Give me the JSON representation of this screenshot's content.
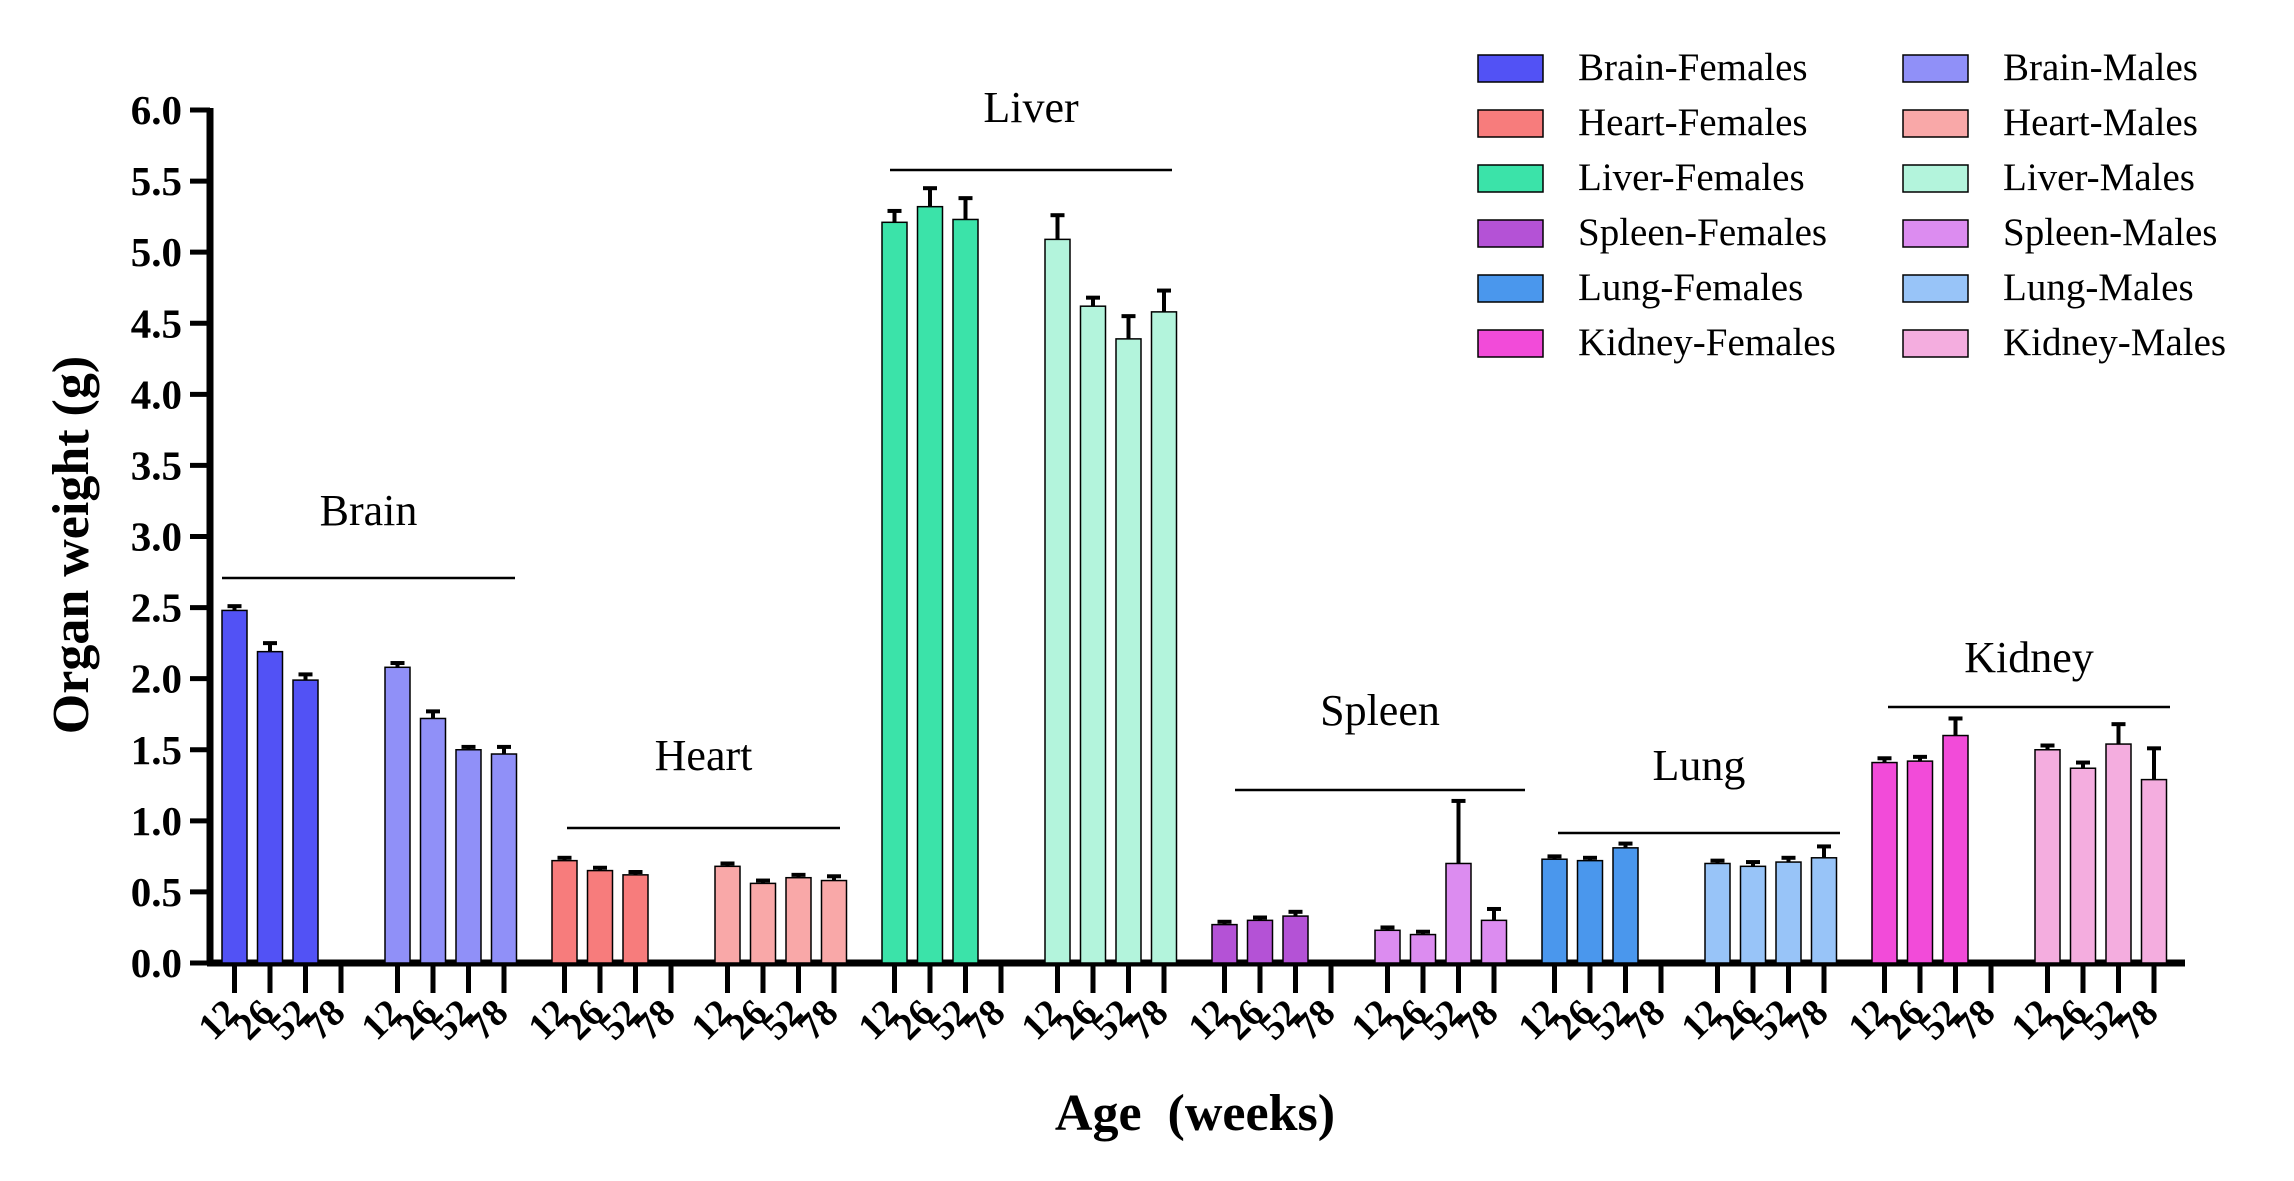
{
  "chart_data": {
    "type": "bar",
    "title": "",
    "xlabel": "Age  (weeks)",
    "ylabel": "Organ weight (g)",
    "ylim": [
      0,
      6
    ],
    "yticks": [
      "0.0",
      "0.5",
      "1.0",
      "1.5",
      "2.0",
      "2.5",
      "3.0",
      "3.5",
      "4.0",
      "4.5",
      "5.0",
      "5.5",
      "6.0"
    ],
    "age_labels": [
      "12",
      "26",
      "52",
      "78"
    ],
    "legend": {
      "placement": "top-right",
      "entries": [
        {
          "name": "Brain-Females",
          "color": "#5252f5"
        },
        {
          "name": "Brain-Males",
          "color": "#9090f8"
        },
        {
          "name": "Heart-Females",
          "color": "#f77c7c"
        },
        {
          "name": "Heart-Males",
          "color": "#f9a8a8"
        },
        {
          "name": "Liver-Females",
          "color": "#3be3a9"
        },
        {
          "name": "Liver-Males",
          "color": "#b3f4dc"
        },
        {
          "name": "Spleen-Females",
          "color": "#b452d6"
        },
        {
          "name": "Spleen-Males",
          "color": "#dc8cf0"
        },
        {
          "name": "Lung-Females",
          "color": "#4a97ed"
        },
        {
          "name": "Lung-Males",
          "color": "#98c4f8"
        },
        {
          "name": "Kidney-Females",
          "color": "#f24bd9"
        },
        {
          "name": "Kidney-Males",
          "color": "#f4addf"
        }
      ]
    },
    "groups": [
      {
        "name": "Brain",
        "series": [
          {
            "name": "Brain-Females",
            "color": "#5252f5",
            "values": [
              2.48,
              2.19,
              1.99,
              null
            ],
            "errors": [
              0.03,
              0.06,
              0.04,
              null
            ]
          },
          {
            "name": "Brain-Males",
            "color": "#9090f8",
            "values": [
              2.08,
              1.72,
              1.5,
              1.47
            ],
            "errors": [
              0.03,
              0.05,
              0.02,
              0.05
            ]
          }
        ]
      },
      {
        "name": "Heart",
        "series": [
          {
            "name": "Heart-Females",
            "color": "#f77c7c",
            "values": [
              0.72,
              0.65,
              0.62,
              null
            ],
            "errors": [
              0.02,
              0.02,
              0.02,
              null
            ]
          },
          {
            "name": "Heart-Males",
            "color": "#f9a8a8",
            "values": [
              0.68,
              0.56,
              0.6,
              0.58
            ],
            "errors": [
              0.02,
              0.02,
              0.02,
              0.03
            ]
          }
        ]
      },
      {
        "name": "Liver",
        "series": [
          {
            "name": "Liver-Females",
            "color": "#3be3a9",
            "values": [
              5.21,
              5.32,
              5.23,
              null
            ],
            "errors": [
              0.08,
              0.13,
              0.15,
              null
            ]
          },
          {
            "name": "Liver-Males",
            "color": "#b3f4dc",
            "values": [
              5.09,
              4.62,
              4.39,
              4.58
            ],
            "errors": [
              0.17,
              0.06,
              0.16,
              0.15
            ]
          }
        ]
      },
      {
        "name": "Spleen",
        "series": [
          {
            "name": "Spleen-Females",
            "color": "#b452d6",
            "values": [
              0.27,
              0.3,
              0.33,
              null
            ],
            "errors": [
              0.02,
              0.02,
              0.03,
              null
            ]
          },
          {
            "name": "Spleen-Males",
            "color": "#dc8cf0",
            "values": [
              0.23,
              0.2,
              0.7,
              0.3
            ],
            "errors": [
              0.02,
              0.02,
              0.44,
              0.08
            ]
          }
        ]
      },
      {
        "name": "Lung",
        "series": [
          {
            "name": "Lung-Females",
            "color": "#4a97ed",
            "values": [
              0.73,
              0.72,
              0.81,
              null
            ],
            "errors": [
              0.02,
              0.02,
              0.03,
              null
            ]
          },
          {
            "name": "Lung-Males",
            "color": "#98c4f8",
            "values": [
              0.7,
              0.68,
              0.71,
              0.74
            ],
            "errors": [
              0.02,
              0.03,
              0.03,
              0.08
            ]
          }
        ]
      },
      {
        "name": "Kidney",
        "series": [
          {
            "name": "Kidney-Females",
            "color": "#f24bd9",
            "values": [
              1.41,
              1.42,
              1.6,
              null
            ],
            "errors": [
              0.03,
              0.03,
              0.12,
              null
            ]
          },
          {
            "name": "Kidney-Males",
            "color": "#f4addf",
            "values": [
              1.5,
              1.37,
              1.54,
              1.29
            ],
            "errors": [
              0.03,
              0.04,
              0.14,
              0.22
            ]
          }
        ]
      }
    ]
  }
}
